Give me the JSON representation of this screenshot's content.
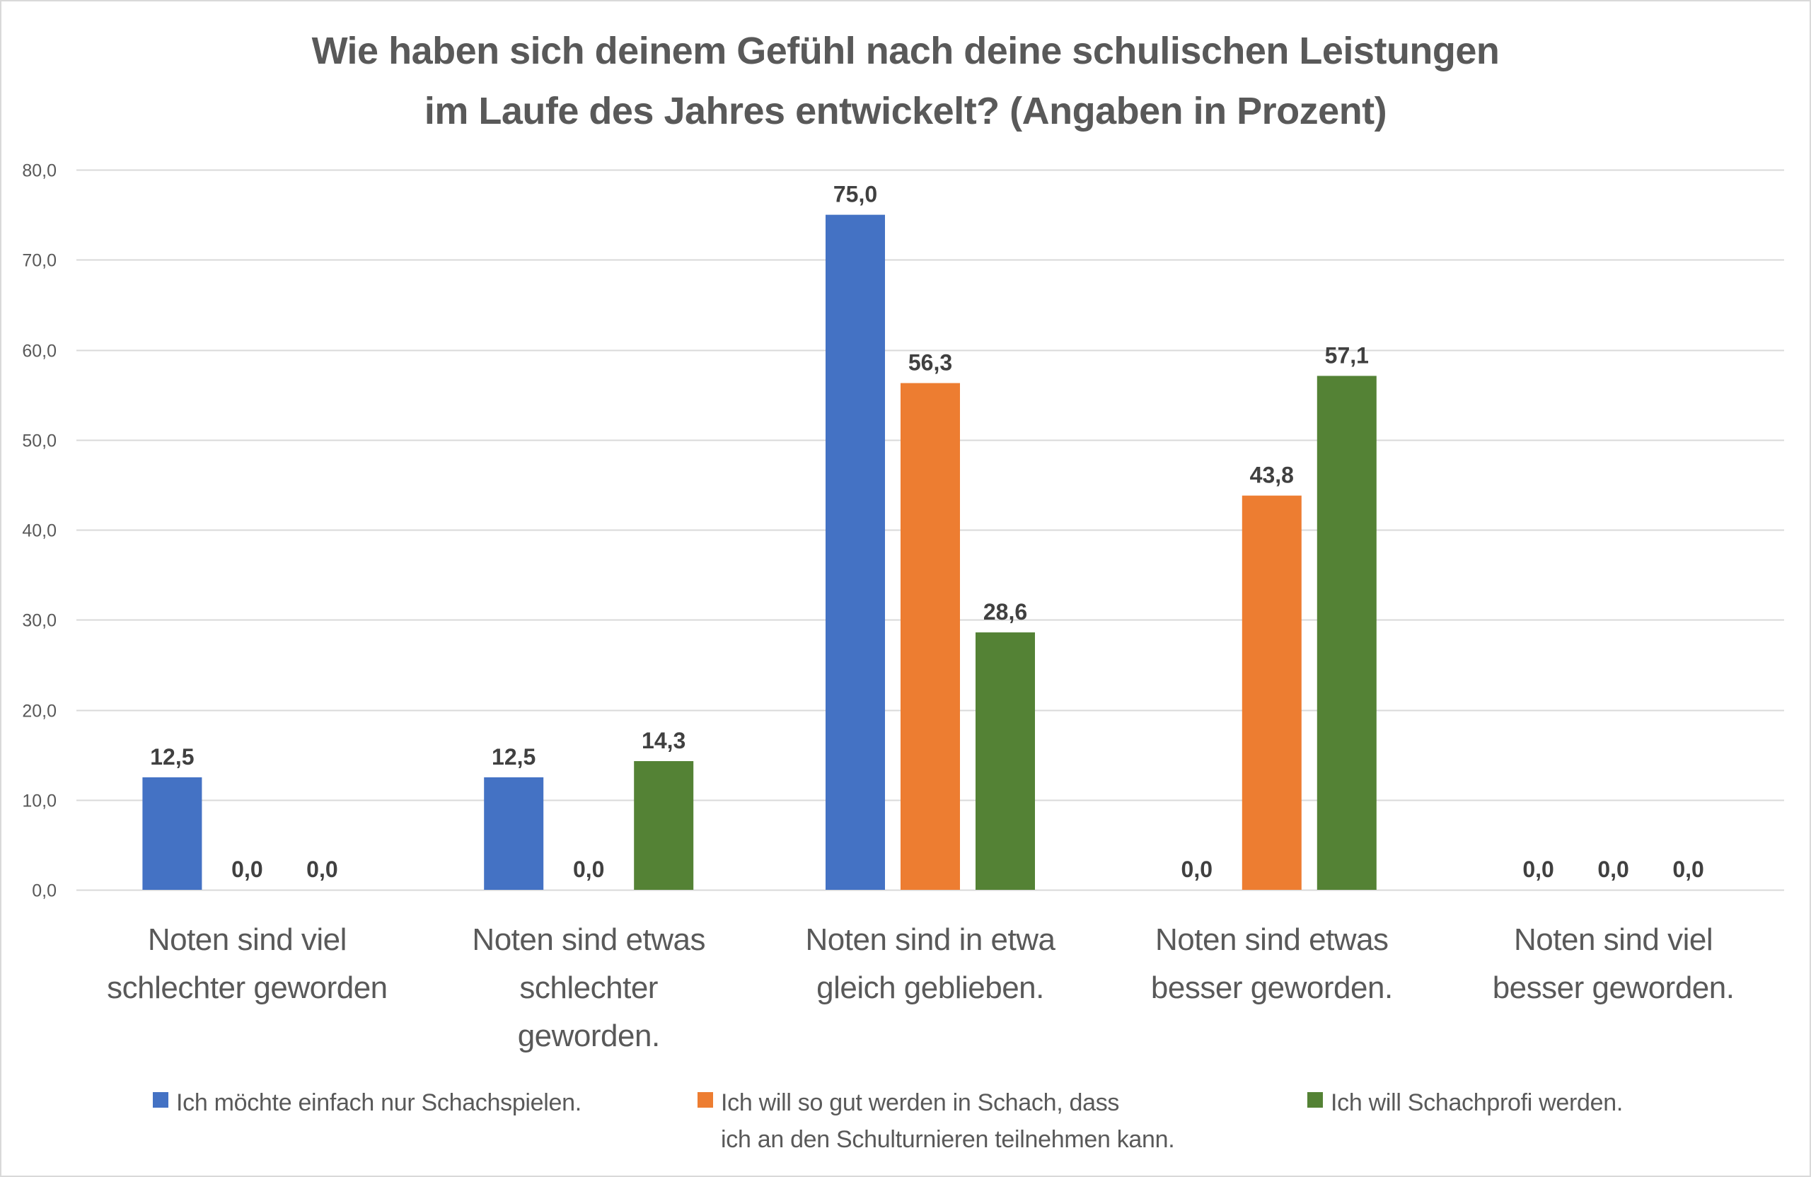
{
  "chart_data": {
    "type": "bar",
    "title": [
      "Wie haben sich deinem Gefühl nach deine schulischen Leistungen",
      "im Laufe des Jahres entwickelt? (Angaben in Prozent)"
    ],
    "xlabel": "",
    "ylabel": "",
    "ylim": [
      0,
      80
    ],
    "yticks": [
      0,
      10,
      20,
      30,
      40,
      50,
      60,
      70,
      80
    ],
    "ytick_labels": [
      "0,0",
      "10,0",
      "20,0",
      "30,0",
      "40,0",
      "50,0",
      "60,0",
      "70,0",
      "80,0"
    ],
    "grid": true,
    "legend_position": "bottom",
    "categories": [
      [
        "Noten sind viel",
        "schlechter geworden"
      ],
      [
        "Noten sind etwas",
        "schlechter",
        "geworden."
      ],
      [
        "Noten sind in etwa",
        "gleich geblieben."
      ],
      [
        "Noten sind etwas",
        "besser geworden."
      ],
      [
        "Noten sind viel",
        "besser geworden."
      ]
    ],
    "series": [
      {
        "name": [
          "Ich möchte einfach nur Schachspielen."
        ],
        "color": "#4472c4",
        "values": [
          12.5,
          12.5,
          75.0,
          0.0,
          0.0
        ],
        "labels": [
          "12,5",
          "12,5",
          "75,0",
          "0,0",
          "0,0"
        ]
      },
      {
        "name": [
          "Ich will so gut werden in Schach, dass",
          "ich an den Schulturnieren teilnehmen kann."
        ],
        "color": "#ed7d31",
        "values": [
          0.0,
          0.0,
          56.3,
          43.8,
          0.0
        ],
        "labels": [
          "0,0",
          "0,0",
          "56,3",
          "43,8",
          "0,0"
        ]
      },
      {
        "name": [
          "Ich will Schachprofi werden."
        ],
        "color": "#548235",
        "values": [
          0.0,
          14.3,
          28.6,
          57.1,
          0.0
        ],
        "labels": [
          "0,0",
          "14,3",
          "28,6",
          "57,1",
          "0,0"
        ]
      }
    ]
  }
}
